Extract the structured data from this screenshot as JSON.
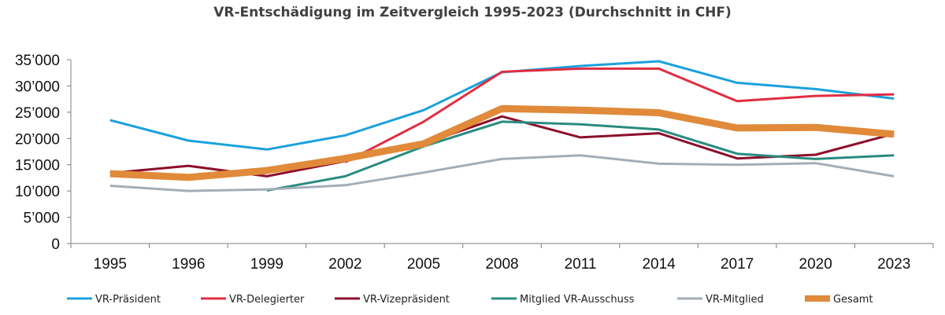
{
  "chart_data": {
    "type": "line",
    "title": "VR-Entschädigung im Zeitvergleich 1995-2023 (Durchschnitt in CHF)",
    "xlabel": "",
    "ylabel": "",
    "categories": [
      "1995",
      "1996",
      "1999",
      "2002",
      "2005",
      "2008",
      "2011",
      "2014",
      "2017",
      "2020",
      "2023"
    ],
    "ylim": [
      0,
      35000
    ],
    "yticks": [
      0,
      5000,
      10000,
      15000,
      20000,
      25000,
      30000,
      35000
    ],
    "ytick_labels": [
      "0",
      "5’000",
      "10’000",
      "15’000",
      "20’000",
      "25’000",
      "30’000",
      "35’000"
    ],
    "grid": false,
    "legend_position": "bottom",
    "series": [
      {
        "name": "VR-Präsident",
        "color": "#1ba1dc",
        "emphasis": false,
        "values": [
          23500,
          19600,
          17900,
          20600,
          25400,
          32600,
          33800,
          34700,
          30600,
          29400,
          27600
        ]
      },
      {
        "name": "VR-Delegierter",
        "color": "#e02d42",
        "emphasis": false,
        "values": [
          null,
          null,
          null,
          15500,
          23200,
          32700,
          33300,
          33300,
          27100,
          28100,
          28400
        ]
      },
      {
        "name": "VR-Vizepräsident",
        "color": "#8c0f2c",
        "emphasis": false,
        "values": [
          13400,
          14800,
          12800,
          15700,
          19000,
          24200,
          20200,
          21000,
          16200,
          16900,
          20900
        ]
      },
      {
        "name": "Mitglied VR-Ausschuss",
        "color": "#2a8b80",
        "emphasis": false,
        "values": [
          null,
          null,
          10100,
          12800,
          18500,
          23200,
          22700,
          21700,
          17100,
          16100,
          16800
        ]
      },
      {
        "name": "VR-Mitglied",
        "color": "#a3adb8",
        "emphasis": false,
        "values": [
          11000,
          10000,
          10300,
          11100,
          13500,
          16100,
          16800,
          15200,
          15000,
          15300,
          12800
        ]
      },
      {
        "name": "Gesamt",
        "color": "#e08a3a",
        "emphasis": true,
        "values": [
          13300,
          12600,
          13900,
          16200,
          19000,
          25700,
          25400,
          24900,
          22000,
          22100,
          20800
        ]
      }
    ]
  }
}
